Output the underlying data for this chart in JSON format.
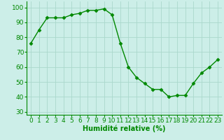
{
  "x": [
    0,
    1,
    2,
    3,
    4,
    5,
    6,
    7,
    8,
    9,
    10,
    11,
    12,
    13,
    14,
    15,
    16,
    17,
    18,
    19,
    20,
    21,
    22,
    23
  ],
  "y": [
    76,
    85,
    93,
    93,
    93,
    95,
    96,
    98,
    98,
    99,
    95,
    76,
    60,
    53,
    49,
    45,
    45,
    40,
    41,
    41,
    49,
    56,
    60,
    65
  ],
  "line_color": "#008800",
  "marker": "D",
  "marker_size": 2.5,
  "bg_color": "#cceee8",
  "grid_color": "#aad8cc",
  "xlabel": "Humidité relative (%)",
  "xlabel_color": "#008800",
  "xlabel_fontsize": 7,
  "tick_color": "#008800",
  "tick_fontsize": 6.5,
  "ylim": [
    28,
    104
  ],
  "xlim": [
    -0.5,
    23.5
  ],
  "yticks": [
    30,
    40,
    50,
    60,
    70,
    80,
    90,
    100
  ],
  "xticks": [
    0,
    1,
    2,
    3,
    4,
    5,
    6,
    7,
    8,
    9,
    10,
    11,
    12,
    13,
    14,
    15,
    16,
    17,
    18,
    19,
    20,
    21,
    22,
    23
  ]
}
